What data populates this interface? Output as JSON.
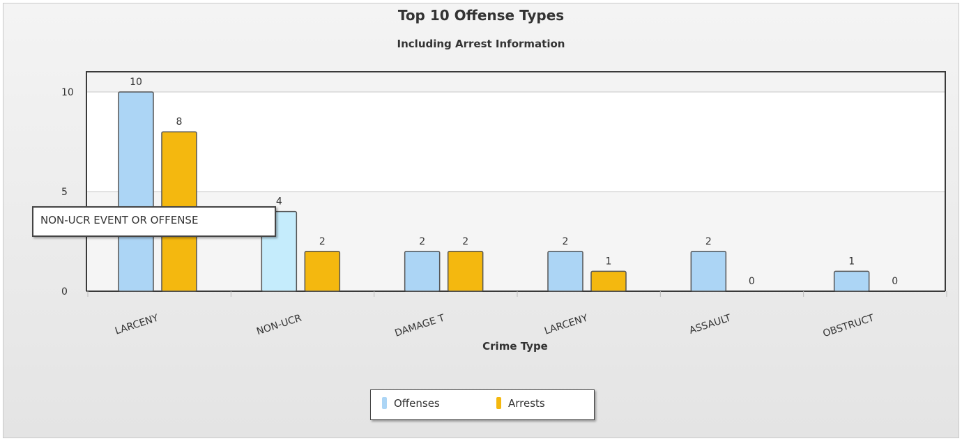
{
  "chart_data": {
    "type": "bar",
    "title": "Top 10 Offense Types",
    "subtitle": "Including Arrest Information",
    "xlabel": "Crime Type",
    "ylabel": "",
    "ylim": [
      0,
      10
    ],
    "yticks": [
      "0",
      "5",
      "10"
    ],
    "grid": true,
    "legend_position": "bottom",
    "categories": [
      "LARCENY",
      "NON-UCR",
      "DAMAGE T",
      "LARCENY",
      "ASSAULT",
      "OBSTRUCT"
    ],
    "series": [
      {
        "name": "Offenses",
        "values": [
          10,
          4,
          2,
          2,
          2,
          1
        ],
        "color": "#acd5f5"
      },
      {
        "name": "Arrests",
        "values": [
          8,
          2,
          2,
          1,
          0,
          0
        ],
        "color": "#f4b80f"
      }
    ],
    "highlight": {
      "series": 0,
      "category": 1,
      "color": "#c5ecfc"
    },
    "tooltip": "NON-UCR EVENT OR OFFENSE"
  }
}
